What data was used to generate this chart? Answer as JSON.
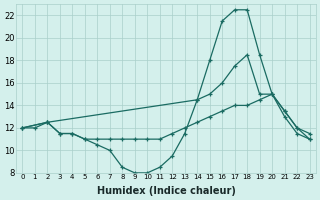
{
  "xlabel": "Humidex (Indice chaleur)",
  "bg_color": "#d4f0ec",
  "grid_color": "#aacfca",
  "line_color": "#1a6b62",
  "xlim": [
    -0.5,
    23.5
  ],
  "ylim": [
    8,
    23
  ],
  "xticks": [
    0,
    1,
    2,
    3,
    4,
    5,
    6,
    7,
    8,
    9,
    10,
    11,
    12,
    13,
    14,
    15,
    16,
    17,
    18,
    19,
    20,
    21,
    22,
    23
  ],
  "yticks": [
    8,
    10,
    12,
    14,
    16,
    18,
    20,
    22
  ],
  "line1_x": [
    0,
    1,
    2,
    3,
    4,
    5,
    6,
    7,
    8,
    9,
    10,
    11,
    12,
    13,
    14,
    15,
    16,
    17,
    18,
    19,
    20,
    21,
    22,
    23
  ],
  "line1_y": [
    12,
    12,
    12.5,
    11.5,
    11.5,
    11,
    10.5,
    10,
    8.5,
    8,
    8,
    8.5,
    9.5,
    11.5,
    14.5,
    18,
    21.5,
    22.5,
    22.5,
    18.5,
    15,
    13,
    11.5,
    11
  ],
  "line2_x": [
    0,
    2,
    14,
    15,
    16,
    17,
    18,
    19,
    20,
    21,
    22,
    23
  ],
  "line2_y": [
    12,
    12.5,
    14.5,
    15,
    16,
    17.5,
    18.5,
    15,
    15,
    13.5,
    12,
    11.5
  ],
  "line3_x": [
    0,
    2,
    3,
    4,
    5,
    6,
    7,
    8,
    9,
    10,
    11,
    12,
    13,
    14,
    15,
    16,
    17,
    18,
    19,
    20,
    21,
    22,
    23
  ],
  "line3_y": [
    12,
    12.5,
    11.5,
    11.5,
    11,
    11,
    11,
    11,
    11,
    11,
    11,
    11.5,
    12,
    12.5,
    13,
    13.5,
    14,
    14,
    14.5,
    15,
    13.5,
    12,
    11
  ]
}
